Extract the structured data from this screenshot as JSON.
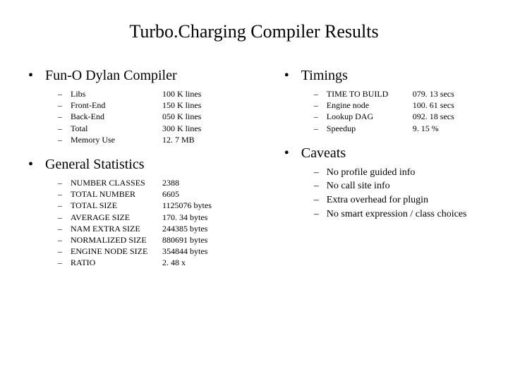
{
  "title": "Turbo.Charging Compiler Results",
  "left": {
    "section1": {
      "heading": "Fun-O Dylan Compiler",
      "rows": [
        {
          "label": "Libs",
          "value": "100 K lines"
        },
        {
          "label": "Front-End",
          "value": "150 K lines"
        },
        {
          "label": "Back-End",
          "value": "050 K lines"
        },
        {
          "label": "Total",
          "value": "300 K lines"
        },
        {
          "label": "Memory Use",
          "value": "12. 7 MB"
        }
      ]
    },
    "section2": {
      "heading": "General Statistics",
      "rows": [
        {
          "label": "NUMBER CLASSES",
          "value": "2388"
        },
        {
          "label": "TOTAL   NUMBER",
          "value": "6605"
        },
        {
          "label": "TOTAL   SIZE",
          "value": "1125076 bytes"
        },
        {
          "label": "AVERAGE SIZE",
          "value": "170. 34  bytes"
        },
        {
          "label": "NAM EXTRA SIZE",
          "value": "244385 bytes"
        },
        {
          "label": "NORMALIZED SIZE",
          "value": "880691 bytes"
        },
        {
          "label": "ENGINE NODE SIZE",
          "value": "354844  bytes"
        },
        {
          "label": "RATIO",
          "value": "2. 48 x"
        }
      ]
    }
  },
  "right": {
    "section1": {
      "heading": "Timings",
      "rows": [
        {
          "label": "TIME TO BUILD",
          "value": "079. 13 secs"
        },
        {
          "label": "Engine node",
          "value": "100. 61 secs"
        },
        {
          "label": "Lookup DAG",
          "value": "092. 18 secs"
        },
        {
          "label": "Speedup",
          "value": "    9. 15 %"
        }
      ]
    },
    "section2": {
      "heading": "Caveats",
      "rows": [
        "No profile guided info",
        "No call site info",
        "Extra overhead for plugin",
        "No smart expression / class choices"
      ]
    }
  },
  "bullets": {
    "main": "•",
    "sub": "–"
  }
}
